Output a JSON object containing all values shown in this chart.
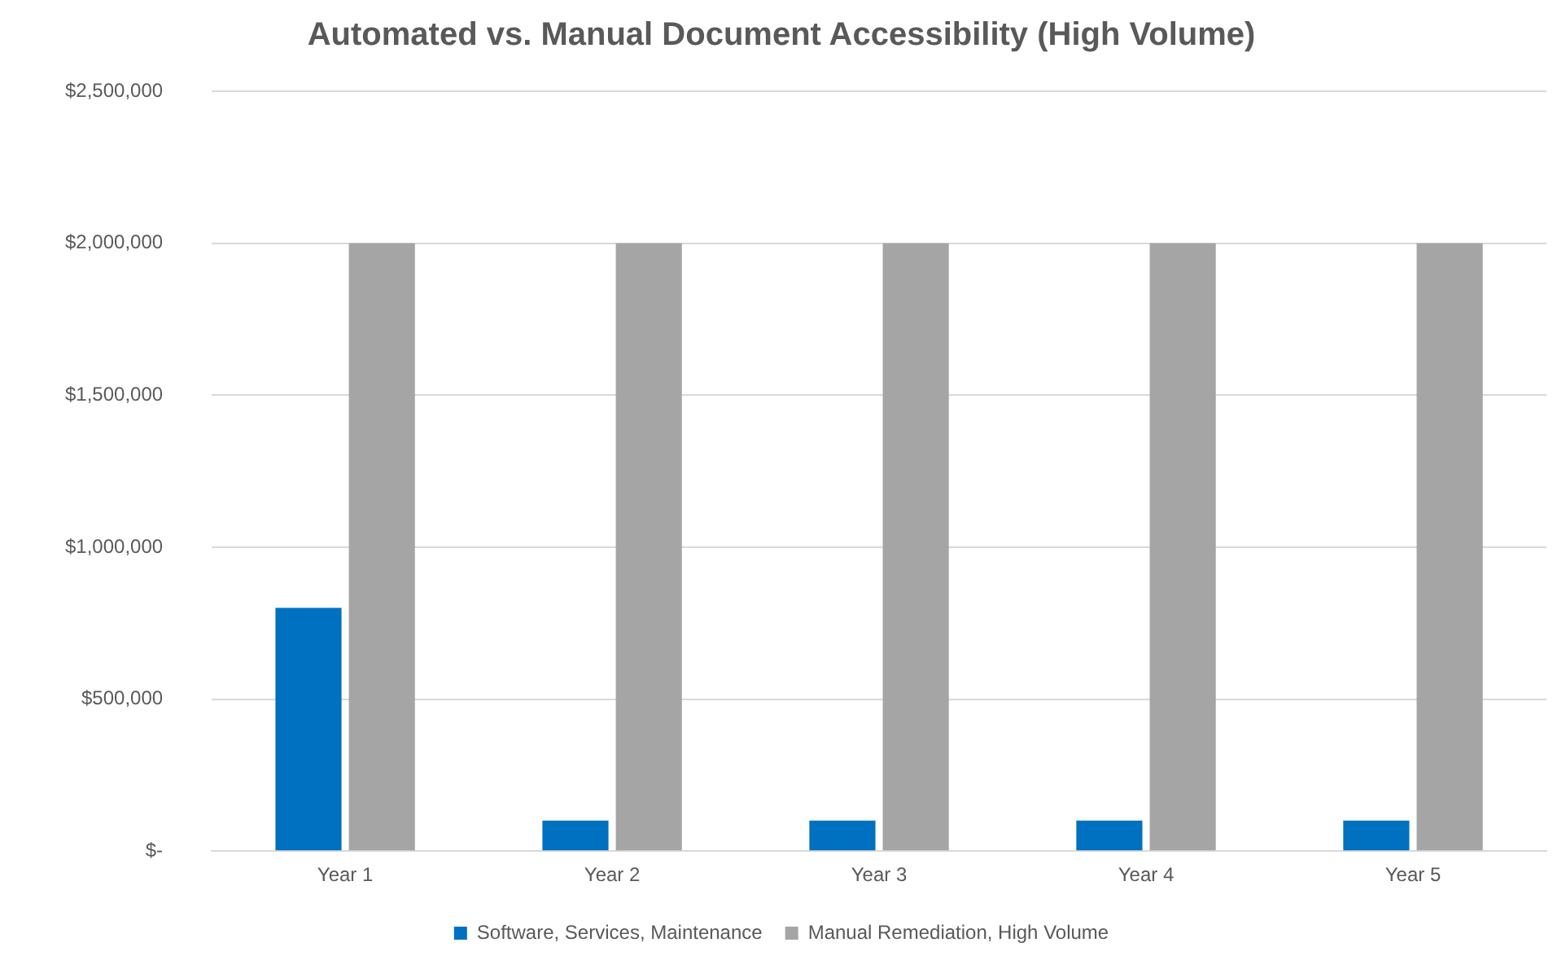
{
  "chart_data": {
    "type": "bar",
    "title": "Automated vs. Manual Document Accessibility (High Volume)",
    "categories": [
      "Year 1",
      "Year 2",
      "Year 3",
      "Year 4",
      "Year 5"
    ],
    "series": [
      {
        "name": "Software, Services, Maintenance",
        "color": "#0070c0",
        "values": [
          800000,
          100000,
          100000,
          100000,
          100000
        ]
      },
      {
        "name": "Manual Remediation, High Volume",
        "color": "#a5a5a5",
        "values": [
          2000000,
          2000000,
          2000000,
          2000000,
          2000000
        ]
      }
    ],
    "ylim": [
      0,
      2500000
    ],
    "yticks": [
      {
        "value": 0,
        "label": "$-"
      },
      {
        "value": 500000,
        "label": "$500,000"
      },
      {
        "value": 1000000,
        "label": "$1,000,000"
      },
      {
        "value": 1500000,
        "label": "$1,500,000"
      },
      {
        "value": 2000000,
        "label": "$2,000,000"
      },
      {
        "value": 2500000,
        "label": "$2,500,000"
      }
    ],
    "grid": "y",
    "legend": "bottom"
  }
}
